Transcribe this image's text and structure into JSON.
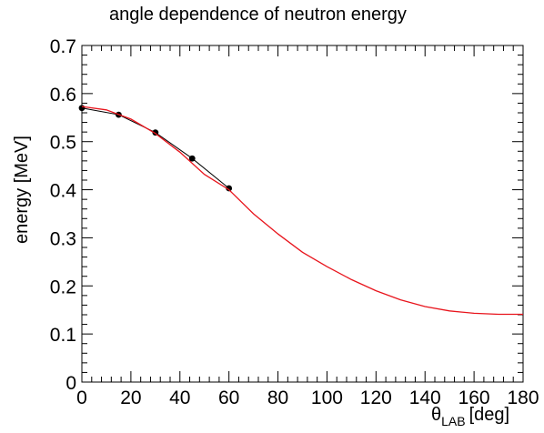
{
  "chart_data": {
    "type": "line",
    "title": "angle dependence of neutron energy",
    "ylabel": "energy [MeV]",
    "xlabel": {
      "main": "θ",
      "sub": "LAB",
      "unit": "[deg]"
    },
    "xlim": [
      0,
      180
    ],
    "ylim": [
      0,
      0.7
    ],
    "x_ticks": [
      "0",
      "20",
      "40",
      "60",
      "80",
      "100",
      "120",
      "140",
      "160",
      "180"
    ],
    "y_ticks": [
      "0",
      "0.1",
      "0.2",
      "0.3",
      "0.4",
      "0.5",
      "0.6",
      "0.7"
    ],
    "grid": false,
    "series": [
      {
        "style": "markers-line",
        "color": "#000000",
        "x": [
          0,
          15,
          30,
          45,
          60
        ],
        "y": [
          0.57,
          0.556,
          0.519,
          0.465,
          0.403
        ]
      },
      {
        "style": "curve",
        "color": "#e8141c",
        "x": [
          0,
          10,
          20,
          30,
          40,
          50,
          60,
          70,
          80,
          90,
          100,
          110,
          120,
          130,
          140,
          150,
          160,
          170,
          180
        ],
        "y": [
          0.573,
          0.566,
          0.547,
          0.517,
          0.478,
          0.432,
          0.4,
          0.35,
          0.308,
          0.27,
          0.24,
          0.213,
          0.19,
          0.171,
          0.157,
          0.148,
          0.143,
          0.141,
          0.141
        ]
      }
    ]
  }
}
